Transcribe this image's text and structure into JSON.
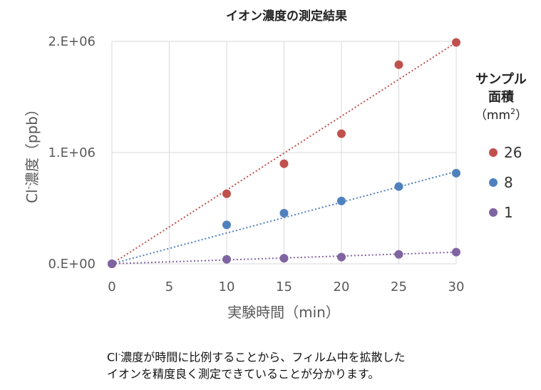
{
  "chart_data": {
    "type": "scatter",
    "title": "イオン濃度の測定結果",
    "xlabel": "実験時間（min）",
    "ylabel_prefix": "Cl",
    "ylabel_superscript": "-",
    "ylabel_suffix": "濃度（ppb）",
    "xlim": [
      0,
      30
    ],
    "ylim": [
      0,
      2000000
    ],
    "x_ticks": [
      0,
      5,
      10,
      15,
      20,
      25,
      30
    ],
    "x_tick_labels": [
      "0",
      "5",
      "10",
      "15",
      "20",
      "25",
      "30"
    ],
    "y_ticks": [
      0,
      1000000,
      2000000
    ],
    "y_tick_labels": [
      "0.E+00",
      "1.E+06",
      "2.E+06"
    ],
    "grid": true,
    "legend_position": "right",
    "legend_title_lines": [
      "サンプル",
      "面積"
    ],
    "legend_unit": "（mm",
    "legend_unit_superscript": "2",
    "legend_unit_close": "）",
    "series": [
      {
        "name": "26",
        "color": "#C0504D",
        "x": [
          0,
          10,
          15,
          20,
          25,
          30
        ],
        "y": [
          0,
          630000,
          900000,
          1170000,
          1790000,
          1990000
        ],
        "trendline": [
          0,
          1990000
        ]
      },
      {
        "name": "8",
        "color": "#4F81BD",
        "x": [
          0,
          10,
          15,
          20,
          25,
          30
        ],
        "y": [
          0,
          350000,
          455000,
          565000,
          695000,
          815000
        ],
        "trendline": [
          0,
          830000
        ]
      },
      {
        "name": "1",
        "color": "#8064A2",
        "x": [
          0,
          10,
          15,
          20,
          25,
          30
        ],
        "y": [
          0,
          40000,
          50000,
          60000,
          85000,
          105000
        ],
        "trendline": [
          0,
          105000
        ]
      }
    ]
  },
  "page": {
    "caption_line1_prefix": "Cl",
    "caption_line1_superscript": "-",
    "caption_line1_suffix": "濃度が時間に比例することから、フィルム中を拡散した",
    "caption_line2": "イオンを精度良く測定できていることが分かります。"
  }
}
